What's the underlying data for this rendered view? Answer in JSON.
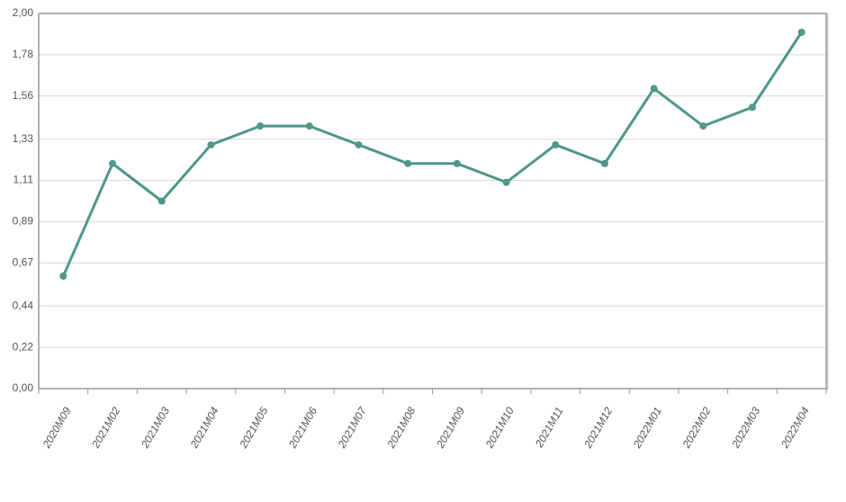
{
  "chart_data": {
    "type": "line",
    "categories": [
      "2020M09",
      "2021M02",
      "2021M03",
      "2021M04",
      "2021M05",
      "2021M06",
      "2021M07",
      "2021M08",
      "2021M09",
      "2021M10",
      "2021M11",
      "2021M12",
      "2022M01",
      "2022M02",
      "2022M03",
      "2022M04"
    ],
    "values": [
      0.6,
      1.2,
      1.0,
      1.3,
      1.4,
      1.4,
      1.3,
      1.2,
      1.2,
      1.1,
      1.3,
      1.2,
      1.6,
      1.4,
      1.5,
      1.9
    ],
    "color": "#4f978b",
    "ylim": [
      0,
      2
    ],
    "yticks": [
      {
        "value": 0,
        "label": "0,00"
      },
      {
        "value": 0.22,
        "label": "0,22"
      },
      {
        "value": 0.44,
        "label": "0,44"
      },
      {
        "value": 0.67,
        "label": "0,67"
      },
      {
        "value": 0.89,
        "label": "0,89"
      },
      {
        "value": 1.11,
        "label": "1,11"
      },
      {
        "value": 1.33,
        "label": "1,33"
      },
      {
        "value": 1.56,
        "label": "1,56"
      },
      {
        "value": 1.78,
        "label": "1,78"
      },
      {
        "value": 2,
        "label": "2,00"
      }
    ],
    "grid": true
  }
}
